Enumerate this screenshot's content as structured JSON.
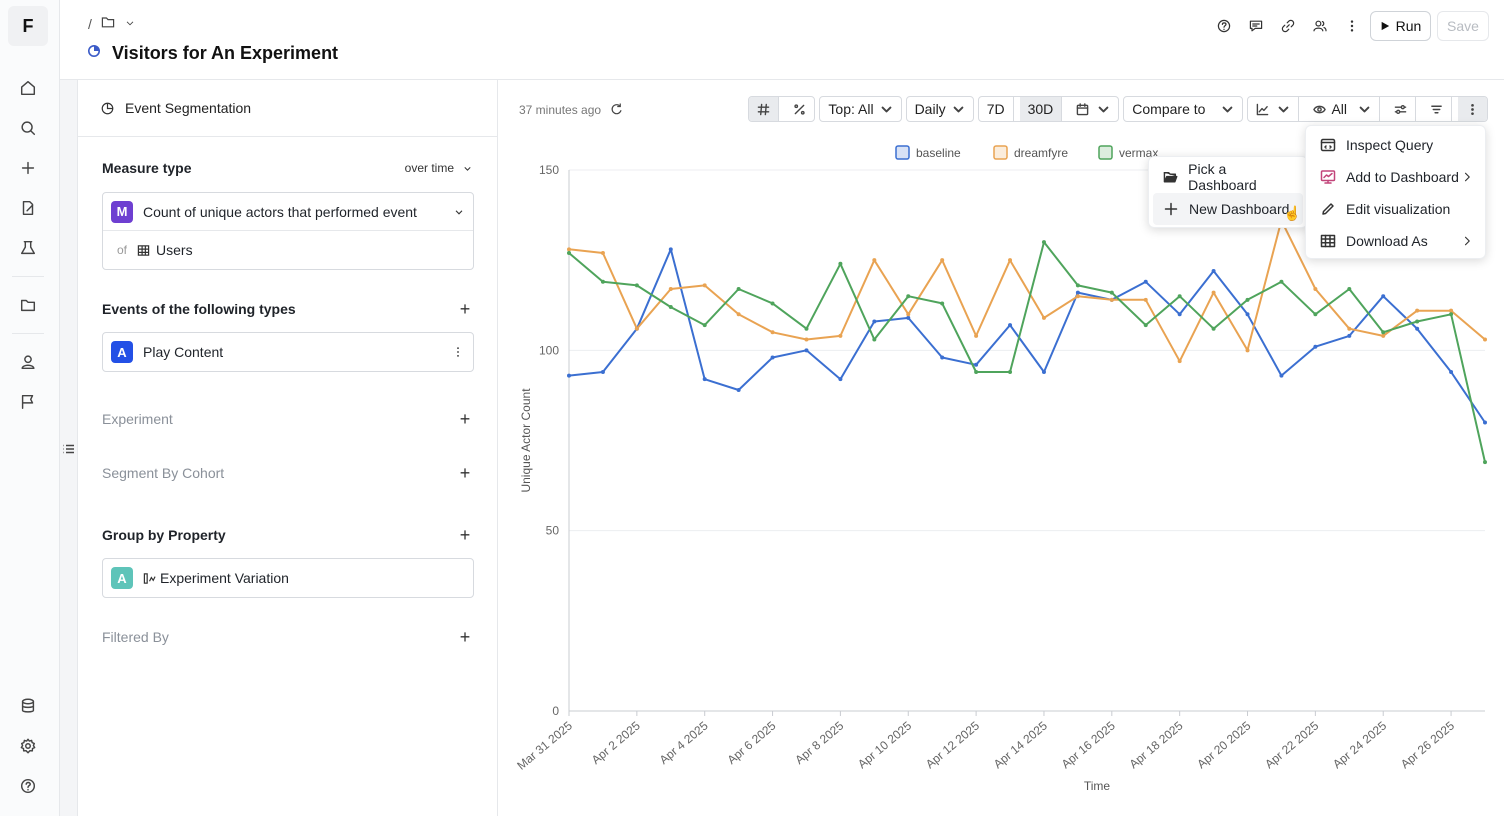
{
  "app": {
    "logo": "F"
  },
  "header": {
    "breadcrumb_sep": "/",
    "title": "Visitors for An Experiment",
    "run_label": "Run",
    "save_label": "Save"
  },
  "query": {
    "panel_title": "Event Segmentation",
    "measure": {
      "label": "Measure type",
      "mode": "over time",
      "badge": "M",
      "metric": "Count of unique actors that performed event",
      "of_label": "of",
      "entity": "Users"
    },
    "events": {
      "label": "Events of the following types",
      "badge": "A",
      "event": "Play Content"
    },
    "experiment_label": "Experiment",
    "segment_label": "Segment By Cohort",
    "group": {
      "label": "Group by Property",
      "badge": "A",
      "property": "Experiment Variation"
    },
    "filtered_label": "Filtered By"
  },
  "chart_toolbar": {
    "updated": "37 minutes ago",
    "top": "Top: All",
    "granularity": "Daily",
    "range_7d": "7D",
    "range_30d": "30D",
    "compare": "Compare to",
    "visibility": "All"
  },
  "menus": {
    "main": [
      "Inspect Query",
      "Add to Dashboard",
      "Edit visualization",
      "Download As"
    ],
    "submenu": [
      "Pick a Dashboard",
      "New Dashboard"
    ]
  },
  "colors": {
    "baseline": "#3b6fd1",
    "dreamfyre": "#e9a352",
    "vermax": "#4fa45c"
  },
  "chart_data": {
    "type": "line",
    "xlabel": "Time",
    "ylabel": "Unique Actor Count",
    "ylim": [
      0,
      150
    ],
    "yticks": [
      0,
      50,
      100,
      150
    ],
    "legend_position": "top",
    "grid": true,
    "x": [
      "Mar 31 2025",
      "Apr 1 2025",
      "Apr 2 2025",
      "Apr 3 2025",
      "Apr 4 2025",
      "Apr 5 2025",
      "Apr 6 2025",
      "Apr 7 2025",
      "Apr 8 2025",
      "Apr 9 2025",
      "Apr 10 2025",
      "Apr 11 2025",
      "Apr 12 2025",
      "Apr 13 2025",
      "Apr 14 2025",
      "Apr 15 2025",
      "Apr 16 2025",
      "Apr 17 2025",
      "Apr 18 2025",
      "Apr 19 2025",
      "Apr 20 2025",
      "Apr 21 2025",
      "Apr 22 2025",
      "Apr 23 2025",
      "Apr 24 2025",
      "Apr 25 2025",
      "Apr 26 2025",
      "Apr 27 2025"
    ],
    "xticks": [
      "Mar 31 2025",
      "Apr 2 2025",
      "Apr 4 2025",
      "Apr 6 2025",
      "Apr 8 2025",
      "Apr 10 2025",
      "Apr 12 2025",
      "Apr 14 2025",
      "Apr 16 2025",
      "Apr 18 2025",
      "Apr 20 2025",
      "Apr 22 2025",
      "Apr 24 2025",
      "Apr 26 2025"
    ],
    "series": [
      {
        "name": "baseline",
        "values": [
          93,
          94,
          106,
          128,
          92,
          89,
          98,
          100,
          92,
          108,
          109,
          98,
          96,
          107,
          94,
          116,
          114,
          119,
          110,
          122,
          110,
          93,
          101,
          104,
          115,
          106,
          94,
          80
        ]
      },
      {
        "name": "dreamfyre",
        "values": [
          128,
          127,
          106,
          117,
          118,
          110,
          105,
          103,
          104,
          125,
          110,
          125,
          104,
          125,
          109,
          115,
          114,
          114,
          97,
          116,
          100,
          136,
          117,
          106,
          104,
          111,
          111,
          103
        ]
      },
      {
        "name": "vermax",
        "values": [
          127,
          119,
          118,
          112,
          107,
          117,
          113,
          106,
          124,
          103,
          115,
          113,
          94,
          94,
          130,
          118,
          116,
          107,
          115,
          106,
          114,
          119,
          110,
          117,
          105,
          108,
          110,
          69
        ]
      }
    ]
  }
}
